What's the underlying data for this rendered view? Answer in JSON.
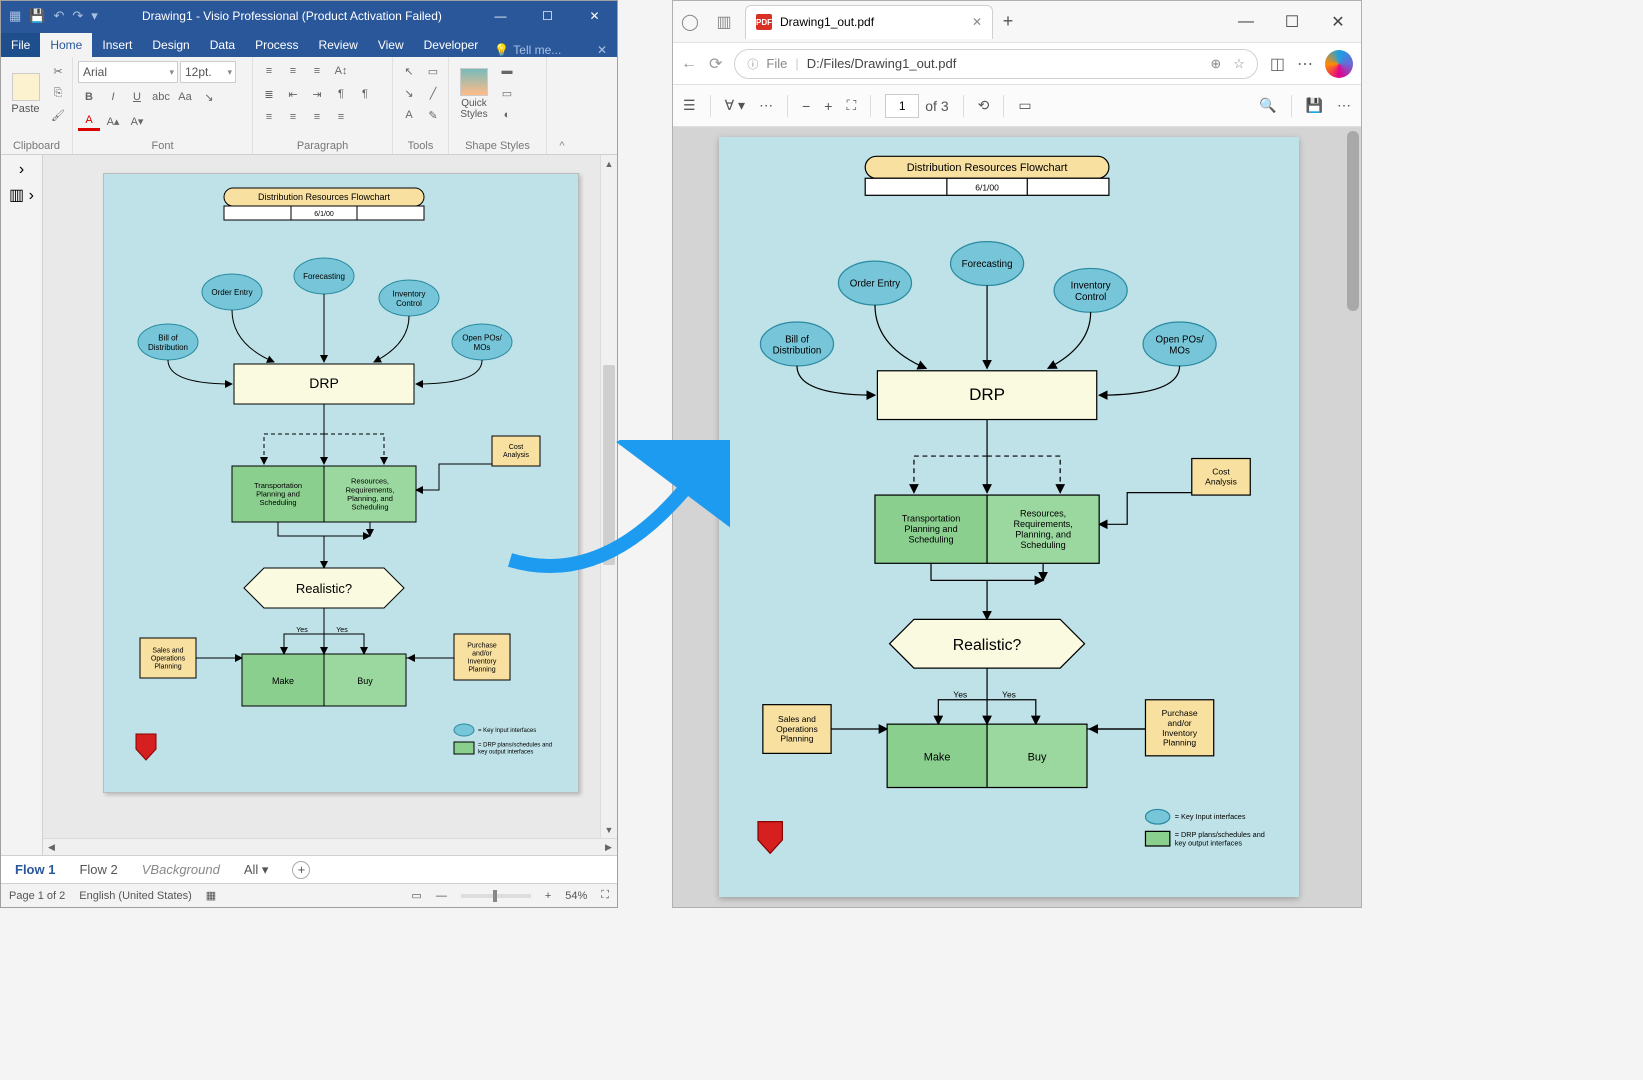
{
  "visio": {
    "title": "Drawing1 - Visio Professional (Product Activation Failed)",
    "file_tab": "File",
    "ribbon_tabs": [
      "Home",
      "Insert",
      "Design",
      "Data",
      "Process",
      "Review",
      "View",
      "Developer"
    ],
    "active_ribbon_tab": "Home",
    "tell_me": "Tell me...",
    "groups": {
      "clipboard": "Clipboard",
      "paste": "Paste",
      "font": "Font",
      "paragraph": "Paragraph",
      "tools": "Tools",
      "shape_styles": "Shape Styles",
      "quick_styles": "Quick\nStyles"
    },
    "font_name": "Arial",
    "font_size": "12pt.",
    "sheet_tabs": {
      "flow1": "Flow 1",
      "flow2": "Flow 2",
      "vbg": "VBackground",
      "all": "All"
    },
    "status": {
      "page": "Page 1 of 2",
      "lang": "English (United States)",
      "zoom": "54%"
    }
  },
  "edge": {
    "tab_title": "Drawing1_out.pdf",
    "url_label_file": "File",
    "url_path": "D:/Files/Drawing1_out.pdf",
    "page_current": "1",
    "page_total": "of 3"
  },
  "flowchart": {
    "background": "#bee2e8",
    "title_fill": "#f8e0a0",
    "title_stroke": "#000000",
    "title": "Distribution Resources Flowchart",
    "date": "6/1/00",
    "ellipse_fill": "#77c5d8",
    "ellipse_stroke": "#2a8aa0",
    "drp_fill": "#fafae0",
    "green_fill": "#8bcf8f",
    "green_fill2": "#9bd89f",
    "yellow_fill": "#f8e0a0",
    "decision_fill": "#fafae0",
    "stroke": "#000000",
    "nodes": {
      "order_entry": "Order Entry",
      "forecasting": "Forecasting",
      "inventory": "Inventory\nControl",
      "bod": "Bill of\nDistribution",
      "openpo": "Open POs/\nMOs",
      "drp": "DRP",
      "cost": "Cost\nAnalysis",
      "transport": "Transportation\nPlanning and\nScheduling",
      "resources": "Resources,\nRequirements,\nPlanning, and\nScheduling",
      "realistic": "Realistic?",
      "sales": "Sales and\nOperations\nPlanning",
      "purchase": "Purchase\nand/or\nInventory\nPlanning",
      "make": "Make",
      "buy": "Buy",
      "yes": "Yes"
    },
    "legend": {
      "key_input": "= Key Input interfaces",
      "drp_plans": "= DRP plans/schedules and\nkey output interfaces"
    }
  }
}
